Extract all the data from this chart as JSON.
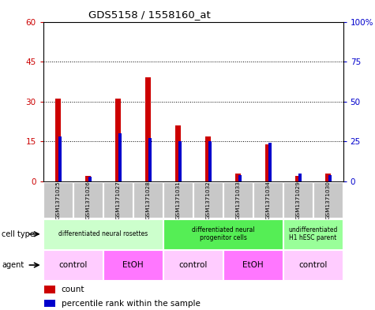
{
  "title": "GDS5158 / 1558160_at",
  "samples": [
    "GSM1371025",
    "GSM1371026",
    "GSM1371027",
    "GSM1371028",
    "GSM1371031",
    "GSM1371032",
    "GSM1371033",
    "GSM1371034",
    "GSM1371029",
    "GSM1371030"
  ],
  "counts": [
    31,
    2,
    31,
    39,
    21,
    17,
    3,
    14,
    2,
    3
  ],
  "percentile_ranks": [
    28,
    3,
    30,
    27,
    25,
    25,
    4,
    24,
    5,
    4
  ],
  "ylim_left": [
    0,
    60
  ],
  "ylim_right": [
    0,
    100
  ],
  "yticks_left": [
    0,
    15,
    30,
    45,
    60
  ],
  "yticks_right": [
    0,
    25,
    50,
    75,
    100
  ],
  "cell_type_groups": [
    {
      "label": "differentiated neural rosettes",
      "start": 0,
      "end": 4,
      "color": "#ccffcc"
    },
    {
      "label": "differentiated neural\nprogenitor cells",
      "start": 4,
      "end": 8,
      "color": "#55ee55"
    },
    {
      "label": "undifferentiated\nH1 hESC parent",
      "start": 8,
      "end": 10,
      "color": "#99ff99"
    }
  ],
  "agent_groups": [
    {
      "label": "control",
      "start": 0,
      "end": 2,
      "color": "#ffccff"
    },
    {
      "label": "EtOH",
      "start": 2,
      "end": 4,
      "color": "#ff77ff"
    },
    {
      "label": "control",
      "start": 4,
      "end": 6,
      "color": "#ffccff"
    },
    {
      "label": "EtOH",
      "start": 6,
      "end": 8,
      "color": "#ff77ff"
    },
    {
      "label": "control",
      "start": 8,
      "end": 10,
      "color": "#ffccff"
    }
  ],
  "bar_color": "#cc0000",
  "percentile_color": "#0000cc",
  "tick_label_color_left": "#cc0000",
  "tick_label_color_right": "#0000cc",
  "sample_bg_color": "#c8c8c8",
  "red_bar_width": 0.18,
  "blue_bar_width": 0.1,
  "legend_items": [
    {
      "label": "count",
      "color": "#cc0000"
    },
    {
      "label": "percentile rank within the sample",
      "color": "#0000cc"
    }
  ]
}
